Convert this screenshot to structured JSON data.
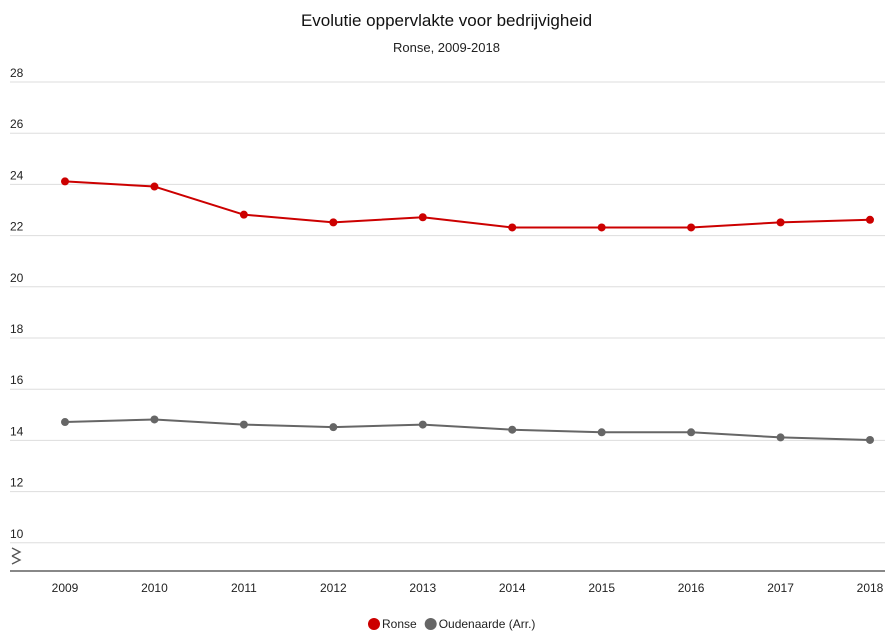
{
  "chart_data": {
    "type": "line",
    "title": "Evolutie oppervlakte voor bedrijvigheid",
    "subtitle": "Ronse, 2009-2018",
    "x": [
      "2009",
      "2010",
      "2011",
      "2012",
      "2013",
      "2014",
      "2015",
      "2016",
      "2017",
      "2018"
    ],
    "y_ticks": [
      "10",
      "12",
      "14",
      "16",
      "18",
      "20",
      "22",
      "24",
      "26",
      "28"
    ],
    "ylim": [
      8,
      28
    ],
    "y_axis_break": true,
    "grid": true,
    "legend_position": "bottom",
    "series": [
      {
        "name": "Ronse",
        "color": "#cc0000",
        "values": [
          24.0,
          23.8,
          22.7,
          22.4,
          22.6,
          22.2,
          22.2,
          22.2,
          22.4,
          22.5
        ]
      },
      {
        "name": "Oudenaarde (Arr.)",
        "color": "#666666",
        "values": [
          14.6,
          14.7,
          14.5,
          14.4,
          14.5,
          14.3,
          14.2,
          14.2,
          14.0,
          13.9
        ]
      }
    ]
  }
}
